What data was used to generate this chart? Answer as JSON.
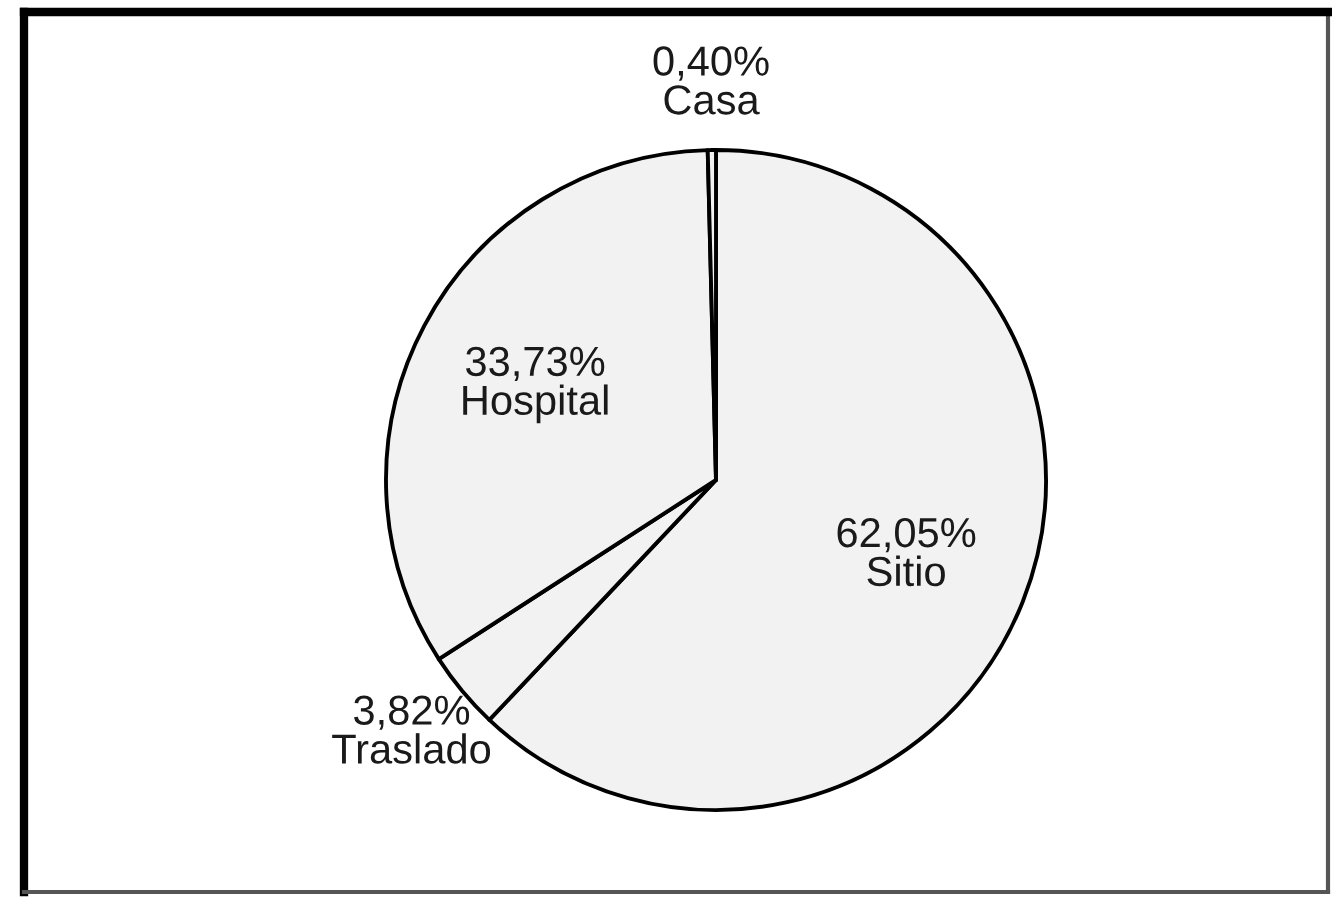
{
  "chart_data": {
    "type": "pie",
    "categories": [
      "Sitio",
      "Traslado",
      "Hospital",
      "Casa"
    ],
    "values": [
      62.05,
      3.82,
      33.73,
      0.4
    ],
    "colors": [
      "#f2f2f2",
      "#f2f2f2",
      "#f2f2f2",
      "#f2f2f2"
    ],
    "value_labels": [
      "62,05%",
      "3,82%",
      "33,73%",
      "0,40%"
    ]
  }
}
